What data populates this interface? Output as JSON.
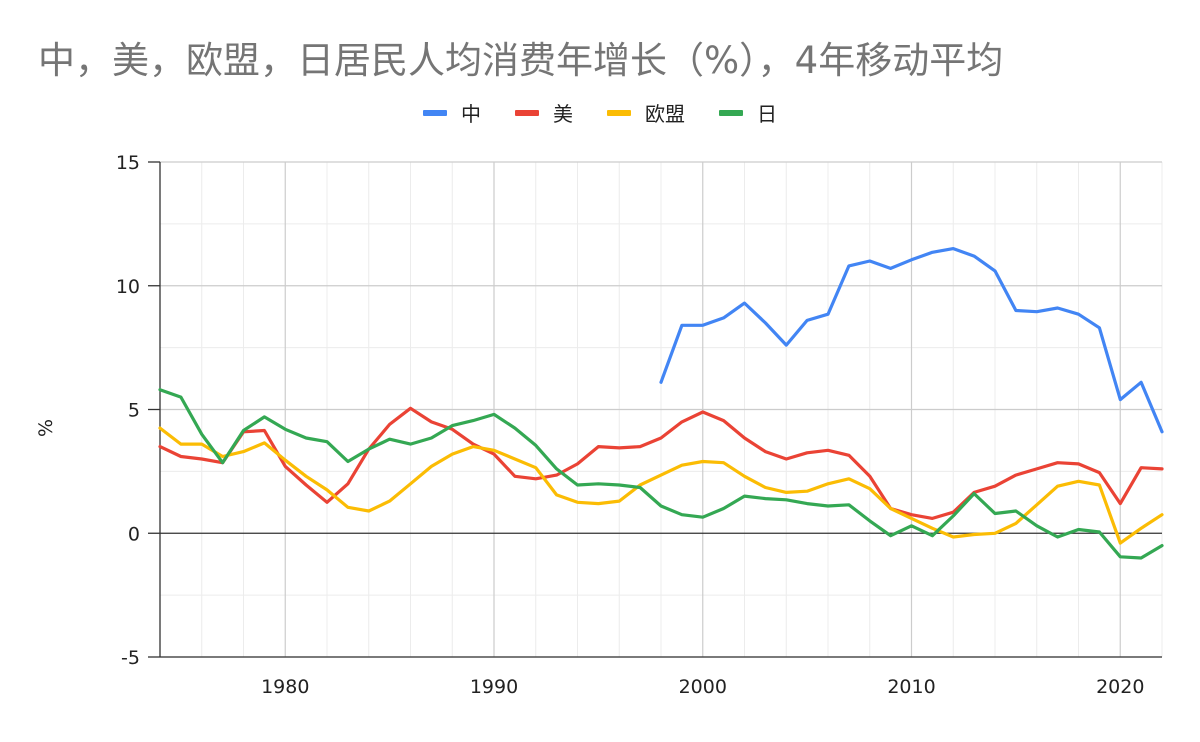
{
  "chart_data": {
    "type": "line",
    "title": "中，美，欧盟，日居民人均消费年增长（%），4年移动平均",
    "ylabel": "%",
    "xlabel": "",
    "xlim": [
      1974,
      2022
    ],
    "ylim": [
      -5,
      15
    ],
    "yticks": [
      "15",
      "10",
      "5",
      "0",
      "-5"
    ],
    "xticks": [
      "1980",
      "1990",
      "2000",
      "2010",
      "2020"
    ],
    "grid": true,
    "legend_position": "top",
    "series": [
      {
        "name": "中",
        "color": "#4285F4",
        "points": [
          [
            1998,
            6.1
          ],
          [
            1999,
            8.4
          ],
          [
            2000,
            8.4
          ],
          [
            2001,
            8.7
          ],
          [
            2002,
            9.3
          ],
          [
            2003,
            8.5
          ],
          [
            2004,
            7.6
          ],
          [
            2005,
            8.6
          ],
          [
            2006,
            8.85
          ],
          [
            2007,
            10.8
          ],
          [
            2008,
            11.0
          ],
          [
            2009,
            10.7
          ],
          [
            2010,
            11.05
          ],
          [
            2011,
            11.35
          ],
          [
            2012,
            11.5
          ],
          [
            2013,
            11.2
          ],
          [
            2014,
            10.6
          ],
          [
            2015,
            9.0
          ],
          [
            2016,
            8.95
          ],
          [
            2017,
            9.1
          ],
          [
            2018,
            8.85
          ],
          [
            2019,
            8.3
          ],
          [
            2020,
            5.4
          ],
          [
            2021,
            6.1
          ],
          [
            2022,
            4.1
          ]
        ]
      },
      {
        "name": "美",
        "color": "#EA4335",
        "points": [
          [
            1974,
            3.5
          ],
          [
            1975,
            3.1
          ],
          [
            1976,
            3.0
          ],
          [
            1977,
            2.85
          ],
          [
            1978,
            4.1
          ],
          [
            1979,
            4.15
          ],
          [
            1980,
            2.7
          ],
          [
            1981,
            1.95
          ],
          [
            1982,
            1.25
          ],
          [
            1983,
            2.0
          ],
          [
            1984,
            3.4
          ],
          [
            1985,
            4.4
          ],
          [
            1986,
            5.05
          ],
          [
            1987,
            4.5
          ],
          [
            1988,
            4.2
          ],
          [
            1989,
            3.6
          ],
          [
            1990,
            3.2
          ],
          [
            1991,
            2.3
          ],
          [
            1992,
            2.2
          ],
          [
            1993,
            2.35
          ],
          [
            1994,
            2.8
          ],
          [
            1995,
            3.5
          ],
          [
            1996,
            3.45
          ],
          [
            1997,
            3.5
          ],
          [
            1998,
            3.85
          ],
          [
            1999,
            4.5
          ],
          [
            2000,
            4.9
          ],
          [
            2001,
            4.55
          ],
          [
            2002,
            3.85
          ],
          [
            2003,
            3.3
          ],
          [
            2004,
            3.0
          ],
          [
            2005,
            3.25
          ],
          [
            2006,
            3.35
          ],
          [
            2007,
            3.15
          ],
          [
            2008,
            2.3
          ],
          [
            2009,
            1.0
          ],
          [
            2010,
            0.75
          ],
          [
            2011,
            0.6
          ],
          [
            2012,
            0.85
          ],
          [
            2013,
            1.65
          ],
          [
            2014,
            1.9
          ],
          [
            2015,
            2.35
          ],
          [
            2016,
            2.6
          ],
          [
            2017,
            2.85
          ],
          [
            2018,
            2.8
          ],
          [
            2019,
            2.45
          ],
          [
            2020,
            1.2
          ],
          [
            2021,
            2.65
          ],
          [
            2022,
            2.6
          ]
        ]
      },
      {
        "name": "欧盟",
        "color": "#FBBC04",
        "points": [
          [
            1974,
            4.25
          ],
          [
            1975,
            3.6
          ],
          [
            1976,
            3.6
          ],
          [
            1977,
            3.1
          ],
          [
            1978,
            3.3
          ],
          [
            1979,
            3.65
          ],
          [
            1980,
            2.95
          ],
          [
            1981,
            2.3
          ],
          [
            1982,
            1.75
          ],
          [
            1983,
            1.05
          ],
          [
            1984,
            0.9
          ],
          [
            1985,
            1.3
          ],
          [
            1986,
            2.0
          ],
          [
            1987,
            2.7
          ],
          [
            1988,
            3.2
          ],
          [
            1989,
            3.5
          ],
          [
            1990,
            3.35
          ],
          [
            1991,
            3.0
          ],
          [
            1992,
            2.65
          ],
          [
            1993,
            1.55
          ],
          [
            1994,
            1.25
          ],
          [
            1995,
            1.2
          ],
          [
            1996,
            1.3
          ],
          [
            1997,
            1.95
          ],
          [
            1998,
            2.35
          ],
          [
            1999,
            2.75
          ],
          [
            2000,
            2.9
          ],
          [
            2001,
            2.85
          ],
          [
            2002,
            2.3
          ],
          [
            2003,
            1.85
          ],
          [
            2004,
            1.65
          ],
          [
            2005,
            1.7
          ],
          [
            2006,
            2.0
          ],
          [
            2007,
            2.2
          ],
          [
            2008,
            1.8
          ],
          [
            2009,
            1.0
          ],
          [
            2010,
            0.6
          ],
          [
            2011,
            0.2
          ],
          [
            2012,
            -0.15
          ],
          [
            2013,
            -0.05
          ],
          [
            2014,
            0.0
          ],
          [
            2015,
            0.4
          ],
          [
            2016,
            1.15
          ],
          [
            2017,
            1.9
          ],
          [
            2018,
            2.1
          ],
          [
            2019,
            1.95
          ],
          [
            2020,
            -0.4
          ],
          [
            2021,
            0.2
          ],
          [
            2022,
            0.75
          ]
        ]
      },
      {
        "name": "日",
        "color": "#34A853",
        "points": [
          [
            1974,
            5.8
          ],
          [
            1975,
            5.5
          ],
          [
            1976,
            4.0
          ],
          [
            1977,
            2.85
          ],
          [
            1978,
            4.15
          ],
          [
            1979,
            4.7
          ],
          [
            1980,
            4.2
          ],
          [
            1981,
            3.85
          ],
          [
            1982,
            3.7
          ],
          [
            1983,
            2.9
          ],
          [
            1984,
            3.4
          ],
          [
            1985,
            3.8
          ],
          [
            1986,
            3.6
          ],
          [
            1987,
            3.85
          ],
          [
            1988,
            4.35
          ],
          [
            1989,
            4.55
          ],
          [
            1990,
            4.8
          ],
          [
            1991,
            4.25
          ],
          [
            1992,
            3.55
          ],
          [
            1993,
            2.6
          ],
          [
            1994,
            1.95
          ],
          [
            1995,
            2.0
          ],
          [
            1996,
            1.95
          ],
          [
            1997,
            1.85
          ],
          [
            1998,
            1.1
          ],
          [
            1999,
            0.75
          ],
          [
            2000,
            0.65
          ],
          [
            2001,
            1.0
          ],
          [
            2002,
            1.5
          ],
          [
            2003,
            1.4
          ],
          [
            2004,
            1.35
          ],
          [
            2005,
            1.2
          ],
          [
            2006,
            1.1
          ],
          [
            2007,
            1.15
          ],
          [
            2008,
            0.5
          ],
          [
            2009,
            -0.1
          ],
          [
            2010,
            0.3
          ],
          [
            2011,
            -0.1
          ],
          [
            2012,
            0.7
          ],
          [
            2013,
            1.6
          ],
          [
            2014,
            0.8
          ],
          [
            2015,
            0.9
          ],
          [
            2016,
            0.3
          ],
          [
            2017,
            -0.15
          ],
          [
            2018,
            0.15
          ],
          [
            2019,
            0.05
          ],
          [
            2020,
            -0.95
          ],
          [
            2021,
            -1.0
          ],
          [
            2022,
            -0.5
          ]
        ]
      }
    ]
  }
}
